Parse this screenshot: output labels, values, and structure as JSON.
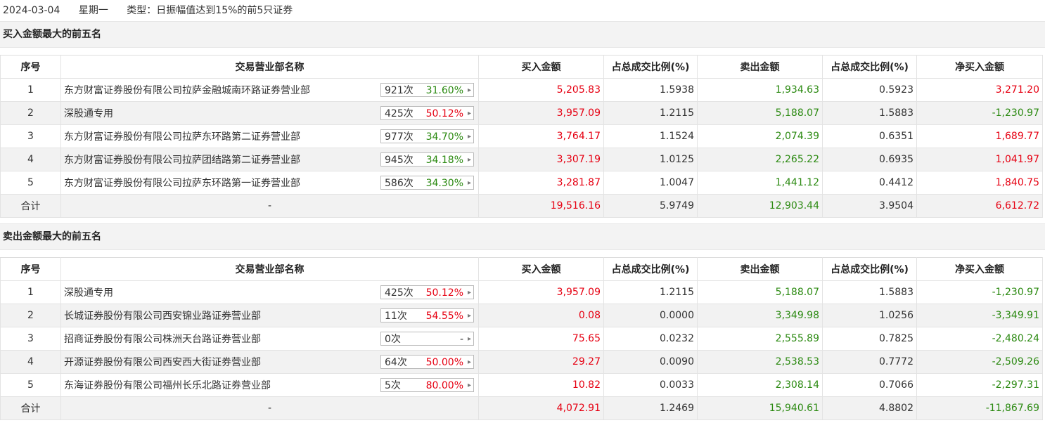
{
  "header": {
    "date": "2024-03-04",
    "weekday": "星期一",
    "type_label": "类型：日振幅值达到15%的前5只证券"
  },
  "columns": [
    "序号",
    "交易营业部名称",
    "买入金额",
    "占总成交比例(%)",
    "卖出金额",
    "占总成交比例(%)",
    "净买入金额"
  ],
  "colors": {
    "up": "#e60012",
    "down": "#2c8a12"
  },
  "buy_section": {
    "title": "买入金额最大的前五名",
    "rows": [
      {
        "idx": "1",
        "name": "东方财富证券股份有限公司拉萨金融城南环路证券营业部",
        "times": "921次",
        "pct": "31.60%",
        "pct_color": "green",
        "buy": "5,205.83",
        "buy_ratio": "1.5938",
        "sell": "1,934.63",
        "sell_ratio": "0.5923",
        "net": "3,271.20",
        "net_color": "red"
      },
      {
        "idx": "2",
        "name": "深股通专用",
        "times": "425次",
        "pct": "50.12%",
        "pct_color": "red",
        "buy": "3,957.09",
        "buy_ratio": "1.2115",
        "sell": "5,188.07",
        "sell_ratio": "1.5883",
        "net": "-1,230.97",
        "net_color": "green"
      },
      {
        "idx": "3",
        "name": "东方财富证券股份有限公司拉萨东环路第二证券营业部",
        "times": "977次",
        "pct": "34.70%",
        "pct_color": "green",
        "buy": "3,764.17",
        "buy_ratio": "1.1524",
        "sell": "2,074.39",
        "sell_ratio": "0.6351",
        "net": "1,689.77",
        "net_color": "red"
      },
      {
        "idx": "4",
        "name": "东方财富证券股份有限公司拉萨团结路第二证券营业部",
        "times": "945次",
        "pct": "34.18%",
        "pct_color": "green",
        "buy": "3,307.19",
        "buy_ratio": "1.0125",
        "sell": "2,265.22",
        "sell_ratio": "0.6935",
        "net": "1,041.97",
        "net_color": "red"
      },
      {
        "idx": "5",
        "name": "东方财富证券股份有限公司拉萨东环路第一证券营业部",
        "times": "586次",
        "pct": "34.30%",
        "pct_color": "green",
        "buy": "3,281.87",
        "buy_ratio": "1.0047",
        "sell": "1,441.12",
        "sell_ratio": "0.4412",
        "net": "1,840.75",
        "net_color": "red"
      }
    ],
    "total": {
      "label": "合计",
      "name": "-",
      "buy": "19,516.16",
      "buy_ratio": "5.9749",
      "sell": "12,903.44",
      "sell_ratio": "3.9504",
      "net": "6,612.72",
      "net_color": "red"
    }
  },
  "sell_section": {
    "title": "卖出金额最大的前五名",
    "rows": [
      {
        "idx": "1",
        "name": "深股通专用",
        "times": "425次",
        "pct": "50.12%",
        "pct_color": "red",
        "buy": "3,957.09",
        "buy_ratio": "1.2115",
        "sell": "5,188.07",
        "sell_ratio": "1.5883",
        "net": "-1,230.97",
        "net_color": "green"
      },
      {
        "idx": "2",
        "name": "长城证券股份有限公司西安锦业路证券营业部",
        "times": "11次",
        "pct": "54.55%",
        "pct_color": "red",
        "buy": "0.08",
        "buy_ratio": "0.0000",
        "sell": "3,349.98",
        "sell_ratio": "1.0256",
        "net": "-3,349.91",
        "net_color": "green"
      },
      {
        "idx": "3",
        "name": "招商证券股份有限公司株洲天台路证券营业部",
        "times": "0次",
        "pct": "-",
        "pct_color": "gray",
        "buy": "75.65",
        "buy_ratio": "0.0232",
        "sell": "2,555.89",
        "sell_ratio": "0.7825",
        "net": "-2,480.24",
        "net_color": "green"
      },
      {
        "idx": "4",
        "name": "开源证券股份有限公司西安西大街证券营业部",
        "times": "64次",
        "pct": "50.00%",
        "pct_color": "red",
        "buy": "29.27",
        "buy_ratio": "0.0090",
        "sell": "2,538.53",
        "sell_ratio": "0.7772",
        "net": "-2,509.26",
        "net_color": "green"
      },
      {
        "idx": "5",
        "name": "东海证券股份有限公司福州长乐北路证券营业部",
        "times": "5次",
        "pct": "80.00%",
        "pct_color": "red",
        "buy": "10.82",
        "buy_ratio": "0.0033",
        "sell": "2,308.14",
        "sell_ratio": "0.7066",
        "net": "-2,297.31",
        "net_color": "green"
      }
    ],
    "total": {
      "label": "合计",
      "name": "-",
      "buy": "4,072.91",
      "buy_ratio": "1.2469",
      "sell": "15,940.61",
      "sell_ratio": "4.8802",
      "net": "-11,867.69",
      "net_color": "green"
    }
  }
}
